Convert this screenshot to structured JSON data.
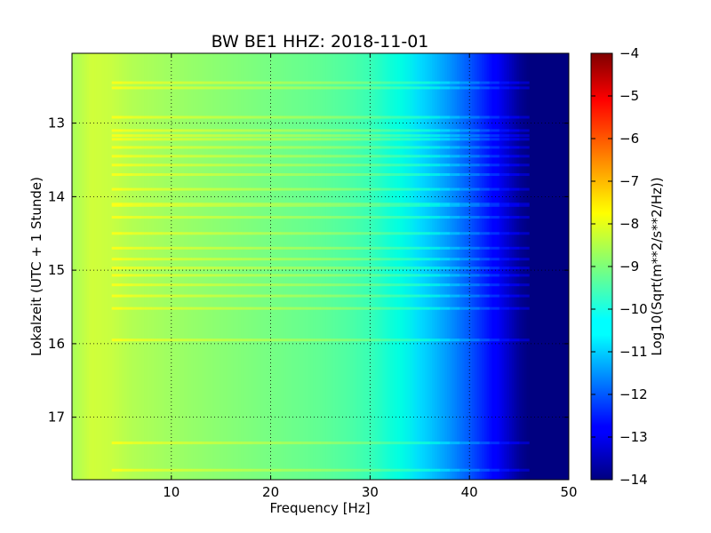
{
  "chart_data": {
    "type": "heatmap",
    "title": "BW BE1 HHZ: 2018-11-01",
    "xlabel": "Frequency [Hz]",
    "ylabel": "Lokalzeit (UTC + 1 Stunde)",
    "xlim": [
      0,
      50
    ],
    "ylim": [
      12.05,
      17.85
    ],
    "y_inverted": true,
    "grid": true,
    "x_ticks": [
      10,
      20,
      30,
      40,
      50
    ],
    "y_ticks": [
      13,
      14,
      15,
      16,
      17
    ],
    "colorbar": {
      "label": "Log10(Sqrt(m**2/s**2/Hz))",
      "colormap": "jet",
      "range": [
        -14,
        -4
      ],
      "ticks": [
        -4,
        -5,
        -6,
        -7,
        -8,
        -9,
        -10,
        -11,
        -12,
        -13,
        -14
      ]
    },
    "frequency_profile": {
      "frequency_hz": [
        0,
        2,
        4,
        6,
        10,
        15,
        20,
        25,
        28,
        30,
        32,
        34,
        36,
        38,
        40,
        42,
        44,
        45,
        46,
        50
      ],
      "log10_amplitude": [
        -8.6,
        -8.2,
        -8.3,
        -8.5,
        -8.7,
        -8.9,
        -9.1,
        -9.3,
        -9.5,
        -9.7,
        -10.1,
        -10.4,
        -10.8,
        -11.3,
        -11.9,
        -12.6,
        -13.4,
        -13.8,
        -14.0,
        -14.0
      ]
    },
    "bright_bands_hours": [
      12.45,
      12.52,
      12.92,
      13.1,
      13.17,
      13.22,
      13.33,
      13.45,
      13.57,
      13.7,
      13.9,
      14.1,
      14.12,
      14.28,
      14.5,
      14.7,
      14.85,
      14.97,
      15.07,
      15.2,
      15.35,
      15.52,
      15.95,
      17.35,
      17.72
    ]
  }
}
